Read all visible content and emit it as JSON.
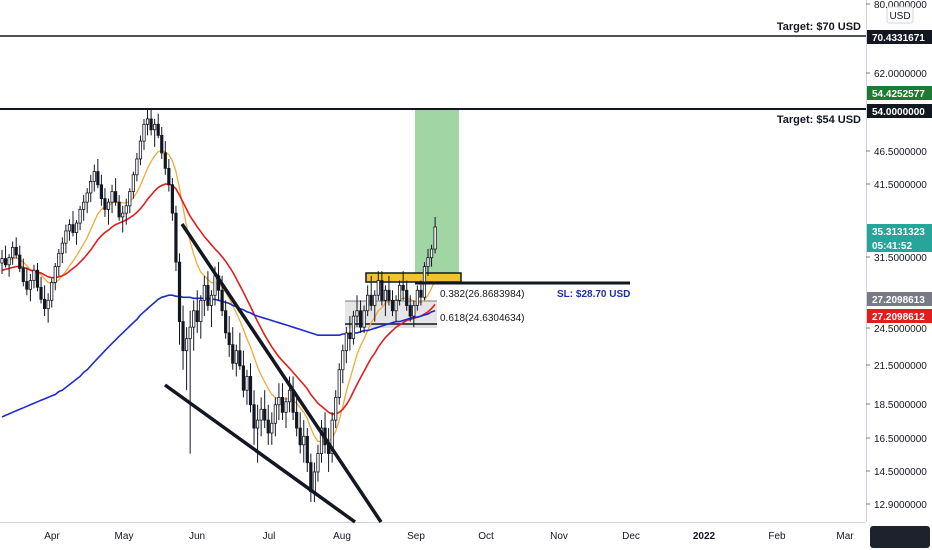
{
  "chart_data": {
    "type": "candlestick",
    "x_labels": [
      "Apr",
      "May",
      "Jun",
      "Jul",
      "Aug",
      "Sep",
      "Oct",
      "Nov",
      "Dec",
      "2022",
      "Feb",
      "Mar"
    ],
    "y_ticks": [
      "80.0000000",
      "62.0000000",
      "46.5000000",
      "41.5000000",
      "31.5000000",
      "24.5000000",
      "21.5000000",
      "18.5000000",
      "16.5000000",
      "14.5000000",
      "12.9000000"
    ],
    "currency": "USD",
    "scale": "log",
    "price_tags": [
      {
        "label": "70.4331671",
        "bg": "#131722",
        "fg": "#ffffff"
      },
      {
        "label": "54.4252577",
        "bg": "#1e7b34",
        "fg": "#ffffff"
      },
      {
        "label": "54.0000000",
        "bg": "#131722",
        "fg": "#ffffff"
      },
      {
        "label": "35.3131323",
        "bg": "#26a69a",
        "fg": "#ffffff",
        "sub": "05:41:52"
      },
      {
        "label": "27.2098613",
        "bg": "#787b86",
        "fg": "#ffffff"
      },
      {
        "label": "27.2098612",
        "bg": "#e01e1e",
        "fg": "#ffffff"
      }
    ],
    "annotations": {
      "target_70": "Target: $70 USD",
      "target_54": "Target: $54 USD",
      "stop_loss": "SL: $28.70 USD",
      "fib_0382": "0.382(26.8683984)",
      "fib_0618": "0.618(24.6304634)"
    },
    "levels": {
      "target_70": 70.43,
      "target_54": 54.0,
      "stop_loss": 28.7,
      "fib_0382": 26.87,
      "fib_0618": 24.63
    },
    "ohlc": [
      [
        31,
        32.5,
        29.8,
        31.5
      ],
      [
        31.5,
        33,
        30.5,
        30.8
      ],
      [
        30.8,
        32,
        29.5,
        31.6
      ],
      [
        31.6,
        33.5,
        30.8,
        32.8
      ],
      [
        32.8,
        34,
        31.5,
        31.9
      ],
      [
        31.9,
        33,
        30,
        30.4
      ],
      [
        30.4,
        31.5,
        28.5,
        29
      ],
      [
        29,
        30.5,
        27.6,
        28.2
      ],
      [
        28.2,
        29.8,
        27,
        29.1
      ],
      [
        29.1,
        30.8,
        28.3,
        30.2
      ],
      [
        30.2,
        31,
        28,
        28.4
      ],
      [
        28.4,
        29.5,
        26.8,
        27.2
      ],
      [
        27.2,
        28.6,
        25.6,
        26.3
      ],
      [
        26.3,
        27.8,
        25,
        27.1
      ],
      [
        27.1,
        29.3,
        26.4,
        28.9
      ],
      [
        28.9,
        31,
        28.1,
        30.6
      ],
      [
        30.6,
        32.6,
        29.6,
        32.1
      ],
      [
        32.1,
        34,
        31,
        33.3
      ],
      [
        33.3,
        35.6,
        32.1,
        34.8
      ],
      [
        34.8,
        36.3,
        33.6,
        35.6
      ],
      [
        35.6,
        37.4,
        34.1,
        34.6
      ],
      [
        34.6,
        36.2,
        33.1,
        35.8
      ],
      [
        35.8,
        38.1,
        34.9,
        37.6
      ],
      [
        37.6,
        39.6,
        36.1,
        38.6
      ],
      [
        38.6,
        40.6,
        37.1,
        39.9
      ],
      [
        39.9,
        42.6,
        38.6,
        41.6
      ],
      [
        41.6,
        44.2,
        40.1,
        43.1
      ],
      [
        43.1,
        45.1,
        40.6,
        41.1
      ],
      [
        41.1,
        42.6,
        38.1,
        39.1
      ],
      [
        39.1,
        40.6,
        36.6,
        37.6
      ],
      [
        37.6,
        39.1,
        35.6,
        38.6
      ],
      [
        38.6,
        41.1,
        37.1,
        40.1
      ],
      [
        40.1,
        42.1,
        38.1,
        38.6
      ],
      [
        38.6,
        39.6,
        36.1,
        36.6
      ],
      [
        36.6,
        38.1,
        34.6,
        37.1
      ],
      [
        37.1,
        39.1,
        35.6,
        38.1
      ],
      [
        38.1,
        40.6,
        37.1,
        40.1
      ],
      [
        40.1,
        43.1,
        39.1,
        42.6
      ],
      [
        42.6,
        46.1,
        41.6,
        45.1
      ],
      [
        45.1,
        49.1,
        44.1,
        48.1
      ],
      [
        48.1,
        52.1,
        46.6,
        51.1
      ],
      [
        51.1,
        54.1,
        49.1,
        52.1
      ],
      [
        52.1,
        54.2,
        49.1,
        50.1
      ],
      [
        50.1,
        52.1,
        47.1,
        51.1
      ],
      [
        51.1,
        53.1,
        48.6,
        49.1
      ],
      [
        49.1,
        50.6,
        45.1,
        46.1
      ],
      [
        46.1,
        48.1,
        42.6,
        43.6
      ],
      [
        43.6,
        45.1,
        40.1,
        41.1
      ],
      [
        41.1,
        42.1,
        36.1,
        37.1
      ],
      [
        37.1,
        38.1,
        30.1,
        31.1
      ],
      [
        31.1,
        32.1,
        23.1,
        25.1
      ],
      [
        25.1,
        26.6,
        21.1,
        22.6
      ],
      [
        22.6,
        24.6,
        19.6,
        23.6
      ],
      [
        23.6,
        26.1,
        15.6,
        24.6
      ],
      [
        24.6,
        27.1,
        22.6,
        26.1
      ],
      [
        26.1,
        28.1,
        24.1,
        25.1
      ],
      [
        25.1,
        27.6,
        23.6,
        27.1
      ],
      [
        27.1,
        29.6,
        25.6,
        28.6
      ],
      [
        28.6,
        30.1,
        26.1,
        26.6
      ],
      [
        26.6,
        28.1,
        24.6,
        27.6
      ],
      [
        27.6,
        30.6,
        26.6,
        29.6
      ],
      [
        29.6,
        31.1,
        27.1,
        28.1
      ],
      [
        28.1,
        29.6,
        25.6,
        26.1
      ],
      [
        26.1,
        27.1,
        23.6,
        24.1
      ],
      [
        24.1,
        25.6,
        22.1,
        23.1
      ],
      [
        23.1,
        24.6,
        21.1,
        21.6
      ],
      [
        21.6,
        23.1,
        20.6,
        22.6
      ],
      [
        22.6,
        24.1,
        21.1,
        21.4
      ],
      [
        21.4,
        22.6,
        19.1,
        19.6
      ],
      [
        19.6,
        21.1,
        18.6,
        20.6
      ],
      [
        20.6,
        21.6,
        18.1,
        18.6
      ],
      [
        18.6,
        19.6,
        16.1,
        17.1
      ],
      [
        17.1,
        18.6,
        15.1,
        17.6
      ],
      [
        17.6,
        19.1,
        16.6,
        18.3
      ],
      [
        18.3,
        19.6,
        17.1,
        17.6
      ],
      [
        17.6,
        18.6,
        16.1,
        16.8
      ],
      [
        16.8,
        18.1,
        16.1,
        17.4
      ],
      [
        17.4,
        19.1,
        16.6,
        18.6
      ],
      [
        18.6,
        20.1,
        17.6,
        19.1
      ],
      [
        19.1,
        20.1,
        17.6,
        18.1
      ],
      [
        18.1,
        19.1,
        17.1,
        18.8
      ],
      [
        18.8,
        20.6,
        18.1,
        19.6
      ],
      [
        19.6,
        20.6,
        17.6,
        18.1
      ],
      [
        18.1,
        19.1,
        16.6,
        17.1
      ],
      [
        17.1,
        18.1,
        15.6,
        16.1
      ],
      [
        16.1,
        17.6,
        15.1,
        16.6
      ],
      [
        16.6,
        17.1,
        14.6,
        15.1
      ],
      [
        15.1,
        15.6,
        13.1,
        13.6
      ],
      [
        13.6,
        15.1,
        13.1,
        14.6
      ],
      [
        14.6,
        16.1,
        14.1,
        15.6
      ],
      [
        15.6,
        17.6,
        15.1,
        17.1
      ],
      [
        17.1,
        18.1,
        15.6,
        16.1
      ],
      [
        16.1,
        17.1,
        14.6,
        15.6
      ],
      [
        15.6,
        18.1,
        15.1,
        17.6
      ],
      [
        17.6,
        19.6,
        17.1,
        19.1
      ],
      [
        19.1,
        21.6,
        18.6,
        21.1
      ],
      [
        21.1,
        23.1,
        20.1,
        22.6
      ],
      [
        22.6,
        24.6,
        21.6,
        24.1
      ],
      [
        24.1,
        25.6,
        22.6,
        23.6
      ],
      [
        23.6,
        26.1,
        23.1,
        25.6
      ],
      [
        25.6,
        27.6,
        24.6,
        26.1
      ],
      [
        26.1,
        27.1,
        24.1,
        24.6
      ],
      [
        24.6,
        26.6,
        24.1,
        26.1
      ],
      [
        26.1,
        28.6,
        25.6,
        27.6
      ],
      [
        27.6,
        29.6,
        26.1,
        26.6
      ],
      [
        26.6,
        28.1,
        25.1,
        27.6
      ],
      [
        27.6,
        30.1,
        27.1,
        29.1
      ],
      [
        29.1,
        30.1,
        26.6,
        27.1
      ],
      [
        27.1,
        28.6,
        25.6,
        28.1
      ],
      [
        28.1,
        29.6,
        26.6,
        27.1
      ],
      [
        27.1,
        28.1,
        25.6,
        26.1
      ],
      [
        26.1,
        27.6,
        25.1,
        27.1
      ],
      [
        27.1,
        29.1,
        26.6,
        28.6
      ],
      [
        28.6,
        30.1,
        27.1,
        28.1
      ],
      [
        28.1,
        29.1,
        26.1,
        26.6
      ],
      [
        26.6,
        27.6,
        25.1,
        25.6
      ],
      [
        25.6,
        27.1,
        24.6,
        26.6
      ],
      [
        26.6,
        28.6,
        26.1,
        28.1
      ],
      [
        28.1,
        29.1,
        26.6,
        27.4
      ],
      [
        27.4,
        31.1,
        27.1,
        30.6
      ],
      [
        30.6,
        32.6,
        29.6,
        31.6
      ],
      [
        31.6,
        33.1,
        30.6,
        32.6
      ],
      [
        32.6,
        36.6,
        32.1,
        35.3
      ]
    ],
    "series": [
      {
        "label": "ma-fast",
        "color": "#f2a93b",
        "values": [
          31.2,
          31.3,
          31.35,
          31.5,
          31.6,
          31.4,
          31.1,
          30.7,
          30.3,
          30.1,
          30,
          29.7,
          29.3,
          28.9,
          28.8,
          28.9,
          29.2,
          29.6,
          30.1,
          30.7,
          31.2,
          31.8,
          32.5,
          33.2,
          34,
          35,
          36,
          37,
          37.6,
          37.9,
          38.1,
          38.5,
          38.7,
          38.6,
          38.5,
          38.5,
          38.7,
          39.2,
          40,
          41,
          42.3,
          43.6,
          44.7,
          45.6,
          46.3,
          46.5,
          46.3,
          45.8,
          44.8,
          43.1,
          40.6,
          37.9,
          35.4,
          33.5,
          32,
          30.8,
          30,
          29.6,
          29.2,
          28.9,
          28.8,
          28.7,
          28.4,
          27.9,
          27.3,
          26.6,
          25.9,
          25.2,
          24.4,
          23.6,
          22.9,
          22.1,
          21.3,
          20.7,
          20.2,
          19.7,
          19.3,
          19.1,
          19,
          19,
          19,
          19,
          18.9,
          18.7,
          18.4,
          18.1,
          17.7,
          17.1,
          16.6,
          16.3,
          16.3,
          16.3,
          16.3,
          16.5,
          16.9,
          17.6,
          18.5,
          19.5,
          20.4,
          21.3,
          22.3,
          23,
          23.6,
          24.3,
          25,
          25.5,
          26.1,
          26.4,
          26.8,
          27,
          27,
          27.1,
          27.2,
          27.3,
          27.3,
          27.2,
          27,
          26.9,
          26.9,
          27.1,
          27.6,
          28.3,
          29.2
        ]
      },
      {
        "label": "ma-mid",
        "color": "#e01e1e",
        "values": [
          30.2,
          30.3,
          30.4,
          30.5,
          30.6,
          30.6,
          30.5,
          30.4,
          30.2,
          30.1,
          30,
          29.9,
          29.7,
          29.5,
          29.4,
          29.4,
          29.5,
          29.6,
          29.8,
          30.1,
          30.4,
          30.7,
          31.1,
          31.5,
          32,
          32.5,
          33.1,
          33.7,
          34.2,
          34.6,
          34.9,
          35.3,
          35.6,
          35.8,
          36,
          36.2,
          36.5,
          36.8,
          37.2,
          37.7,
          38.3,
          39,
          39.6,
          40.2,
          40.7,
          41,
          41.2,
          41.2,
          41,
          40.5,
          39.6,
          38.6,
          37.6,
          36.7,
          36,
          35.3,
          34.7,
          34.1,
          33.6,
          33.1,
          32.6,
          32.2,
          31.7,
          31.2,
          30.6,
          30,
          29.3,
          28.6,
          27.9,
          27.2,
          26.5,
          25.8,
          25.1,
          24.5,
          23.9,
          23.4,
          22.9,
          22.5,
          22.1,
          21.8,
          21.5,
          21.2,
          20.9,
          20.6,
          20.3,
          20,
          19.7,
          19.3,
          19,
          18.7,
          18.5,
          18.3,
          18.1,
          18,
          18,
          18.1,
          18.3,
          18.6,
          19,
          19.5,
          20,
          20.5,
          21,
          21.5,
          22,
          22.4,
          22.9,
          23.3,
          23.7,
          24,
          24.3,
          24.6,
          24.8,
          25,
          25.2,
          25.3,
          25.4,
          25.5,
          25.6,
          25.8,
          26,
          26.3,
          26.7
        ]
      },
      {
        "label": "ma-slow",
        "color": "#1e2ccd",
        "values": [
          17.8,
          17.9,
          18,
          18.1,
          18.2,
          18.3,
          18.4,
          18.5,
          18.6,
          18.7,
          18.8,
          18.9,
          19,
          19.1,
          19.2,
          19.3,
          19.5,
          19.6,
          19.8,
          20,
          20.2,
          20.4,
          20.6,
          20.9,
          21.1,
          21.4,
          21.7,
          22,
          22.3,
          22.6,
          22.9,
          23.2,
          23.5,
          23.8,
          24.1,
          24.4,
          24.7,
          25,
          25.3,
          25.7,
          26,
          26.3,
          26.6,
          26.9,
          27.2,
          27.4,
          27.5,
          27.6,
          27.6,
          27.5,
          27.5,
          27.4,
          27.4,
          27.4,
          27.3,
          27.3,
          27.3,
          27.3,
          27.3,
          27.2,
          27.2,
          27.1,
          27,
          26.9,
          26.8,
          26.6,
          26.5,
          26.3,
          26.2,
          26,
          25.9,
          25.7,
          25.6,
          25.5,
          25.4,
          25.3,
          25.2,
          25.1,
          25,
          24.9,
          24.8,
          24.7,
          24.6,
          24.5,
          24.4,
          24.3,
          24.2,
          24.1,
          24,
          23.9,
          23.9,
          23.9,
          23.9,
          23.9,
          23.9,
          23.9,
          24,
          24,
          24,
          24.1,
          24.1,
          24.2,
          24.3,
          24.3,
          24.4,
          24.5,
          24.6,
          24.7,
          24.8,
          24.9,
          25,
          25.1,
          25.1,
          25.2,
          25.3,
          25.4,
          25.5,
          25.5,
          25.6,
          25.7,
          25.8,
          26,
          26.1
        ]
      }
    ]
  }
}
